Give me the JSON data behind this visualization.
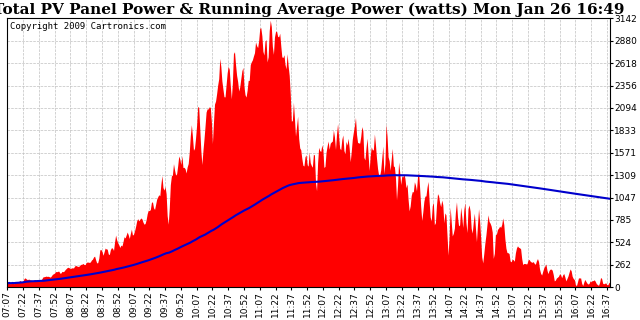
{
  "title": "Total PV Panel Power & Running Average Power (watts) Mon Jan 26 16:49",
  "copyright_text": "Copyright 2009 Cartronics.com",
  "bg_color": "#ffffff",
  "plot_bg_color": "#ffffff",
  "grid_color": "#c0c0c0",
  "fill_color": "#ff0000",
  "line_color": "#0000cc",
  "ymin": 0.0,
  "ymax": 3141.6,
  "ytick_values": [
    0.0,
    261.8,
    523.6,
    785.4,
    1047.2,
    1309.0,
    1570.8,
    1832.6,
    2094.4,
    2356.2,
    2618.0,
    2879.8,
    3141.6
  ],
  "xstart_hour": 7,
  "xstart_min": 7,
  "xend_hour": 16,
  "xend_min": 40,
  "title_fontsize": 11,
  "axis_fontsize": 6.5,
  "copyright_fontsize": 6.5
}
